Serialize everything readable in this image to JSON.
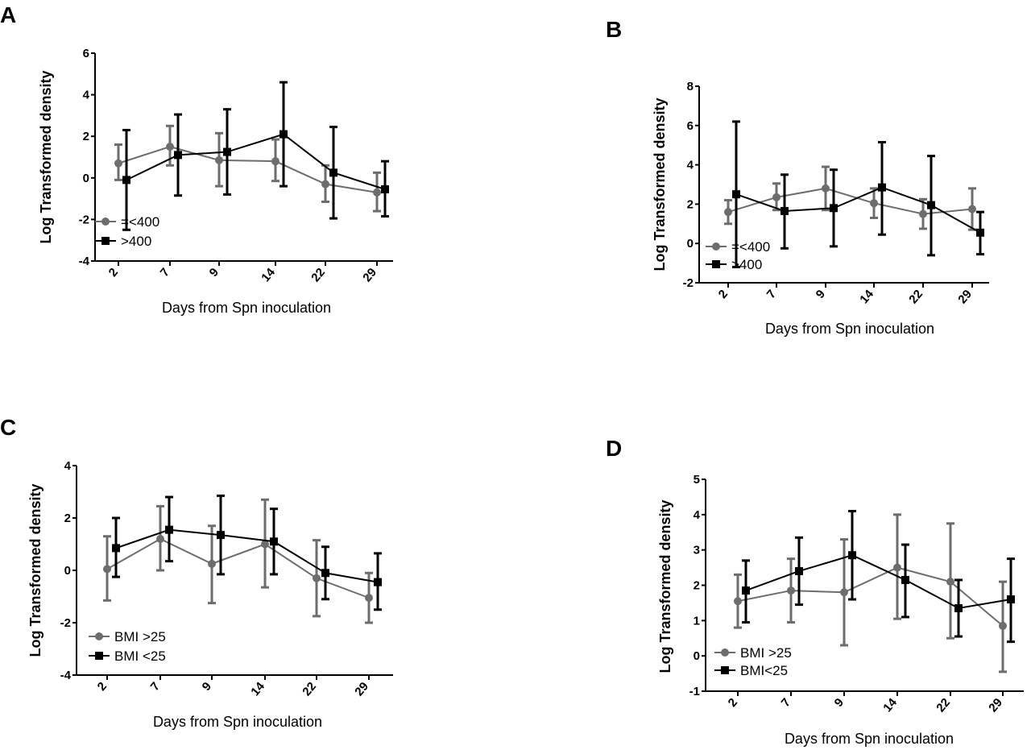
{
  "chart_data": [
    {
      "panel": "A",
      "type": "line",
      "categories": [
        "2",
        "7",
        "9",
        "14",
        "22",
        "29"
      ],
      "xlabel": "Days from Spn inoculation",
      "ylabel": "Log Transformed density",
      "ylim": [
        -4,
        6
      ],
      "yticks": [
        -4,
        -2,
        0,
        2,
        4,
        6
      ],
      "yticklabels": [
        "-4",
        "-2",
        "0",
        "2",
        "4",
        "6"
      ],
      "legend_position": "bottom-left",
      "series": [
        {
          "name": "=<400",
          "color": "#6d6d6d",
          "marker": "circle",
          "values": [
            0.7,
            1.5,
            0.85,
            0.8,
            -0.3,
            -0.7
          ],
          "err_low": [
            -0.1,
            0.6,
            -0.4,
            -0.15,
            -1.15,
            -1.6
          ],
          "err_high": [
            1.6,
            2.5,
            2.15,
            1.85,
            0.6,
            0.25
          ]
        },
        {
          "name": ">400",
          "color": "#000000",
          "marker": "square",
          "values": [
            -0.1,
            1.1,
            1.25,
            2.1,
            0.25,
            -0.55
          ],
          "err_low": [
            -2.5,
            -0.85,
            -0.8,
            -0.4,
            -1.95,
            -1.85
          ],
          "err_high": [
            2.3,
            3.05,
            3.3,
            4.6,
            2.45,
            0.8
          ]
        }
      ]
    },
    {
      "panel": "B",
      "type": "line",
      "categories": [
        "2",
        "7",
        "9",
        "14",
        "22",
        "29"
      ],
      "xlabel": "Days from Spn inoculation",
      "ylabel": "Log Transformed density",
      "ylim": [
        -2,
        8
      ],
      "yticks": [
        -2,
        0,
        2,
        4,
        6,
        8
      ],
      "yticklabels": [
        "-2",
        "0",
        "2",
        "4",
        "6",
        "8"
      ],
      "legend_position": "bottom-left",
      "series": [
        {
          "name": "=<400",
          "color": "#6d6d6d",
          "marker": "circle",
          "values": [
            1.6,
            2.35,
            2.8,
            2.05,
            1.5,
            1.75
          ],
          "err_low": [
            1.0,
            1.7,
            1.7,
            1.3,
            0.75,
            0.7
          ],
          "err_high": [
            2.2,
            3.05,
            3.9,
            2.8,
            2.25,
            2.8
          ]
        },
        {
          "name": ">400",
          "color": "#000000",
          "marker": "square",
          "values": [
            2.5,
            1.65,
            1.8,
            2.85,
            1.95,
            0.55
          ],
          "err_low": [
            -1.2,
            -0.25,
            -0.15,
            0.45,
            -0.6,
            -0.55
          ],
          "err_high": [
            6.2,
            3.5,
            3.75,
            5.15,
            4.45,
            1.6
          ]
        }
      ]
    },
    {
      "panel": "C",
      "type": "line",
      "categories": [
        "2",
        "7",
        "9",
        "14",
        "22",
        "29"
      ],
      "xlabel": "Days from Spn inoculation",
      "ylabel": "Log Transformed density",
      "ylim": [
        -4,
        4
      ],
      "yticks": [
        -4,
        -2,
        0,
        2,
        4
      ],
      "yticklabels": [
        "-4",
        "-2",
        "0",
        "2",
        "4"
      ],
      "legend_position": "bottom-left",
      "series": [
        {
          "name": "BMI >25",
          "color": "#6d6d6d",
          "marker": "circle",
          "values": [
            0.05,
            1.2,
            0.25,
            1.0,
            -0.3,
            -1.05
          ],
          "err_low": [
            -1.15,
            0.0,
            -1.25,
            -0.65,
            -1.75,
            -2.0
          ],
          "err_high": [
            1.3,
            2.45,
            1.7,
            2.7,
            1.15,
            -0.1
          ]
        },
        {
          "name": "BMI <25",
          "color": "#000000",
          "marker": "square",
          "values": [
            0.85,
            1.55,
            1.35,
            1.1,
            -0.1,
            -0.45
          ],
          "err_low": [
            -0.25,
            0.35,
            -0.15,
            -0.15,
            -1.1,
            -1.5
          ],
          "err_high": [
            2.0,
            2.8,
            2.85,
            2.35,
            0.9,
            0.65
          ]
        }
      ]
    },
    {
      "panel": "D",
      "type": "line",
      "categories": [
        "2",
        "7",
        "9",
        "14",
        "22",
        "29"
      ],
      "xlabel": "Days from Spn inoculation",
      "ylabel": "Log Transformed density",
      "ylim": [
        -1,
        5
      ],
      "yticks": [
        -1,
        0,
        1,
        2,
        3,
        4,
        5
      ],
      "yticklabels": [
        "-1",
        "0",
        "1",
        "2",
        "3",
        "4",
        "5"
      ],
      "legend_position": "bottom-left",
      "series": [
        {
          "name": "BMI >25",
          "color": "#6d6d6d",
          "marker": "circle",
          "values": [
            1.55,
            1.85,
            1.8,
            2.5,
            2.1,
            0.85
          ],
          "err_low": [
            0.8,
            0.95,
            0.3,
            1.05,
            0.5,
            -0.45
          ],
          "err_high": [
            2.3,
            2.75,
            3.3,
            4.0,
            3.75,
            2.1
          ]
        },
        {
          "name": "BMI<25",
          "color": "#000000",
          "marker": "square",
          "values": [
            1.85,
            2.4,
            2.85,
            2.15,
            1.35,
            1.6
          ],
          "err_low": [
            0.95,
            1.45,
            1.6,
            1.1,
            0.55,
            0.4
          ],
          "err_high": [
            2.7,
            3.35,
            4.1,
            3.15,
            2.15,
            2.75
          ]
        }
      ]
    }
  ]
}
